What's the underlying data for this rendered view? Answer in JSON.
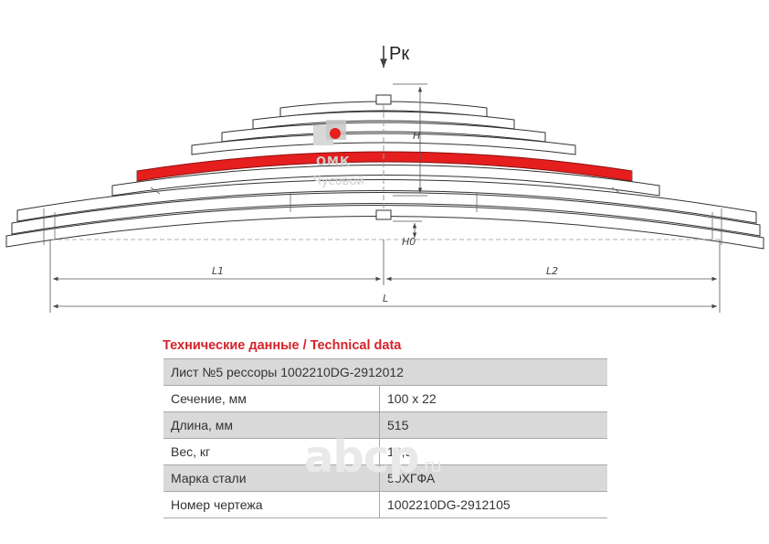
{
  "drawing": {
    "load_label": "Pк",
    "height_label": "H",
    "offset_label": "H0",
    "left_length_label": "L1",
    "right_length_label": "L2",
    "total_length_label": "L",
    "logo_text": "ОМК",
    "logo_subtext": "Чусовой",
    "highlight_color": "#e61e1e"
  },
  "section_title": "Технические данные / Technical data",
  "table": {
    "header": "Лист №5 рессоры 1002210DG-2912012",
    "rows": [
      {
        "label": "Сечение, мм",
        "value": "100 х 22"
      },
      {
        "label": "Длина, мм",
        "value": "515"
      },
      {
        "label": "Вес, кг",
        "value": "16,9"
      },
      {
        "label": "Марка стали",
        "value": "50ХГФА"
      },
      {
        "label": "Номер чертежа",
        "value": "1002210DG-2912105"
      }
    ]
  },
  "watermark": {
    "main": "abcp",
    "suffix": ".ru"
  }
}
